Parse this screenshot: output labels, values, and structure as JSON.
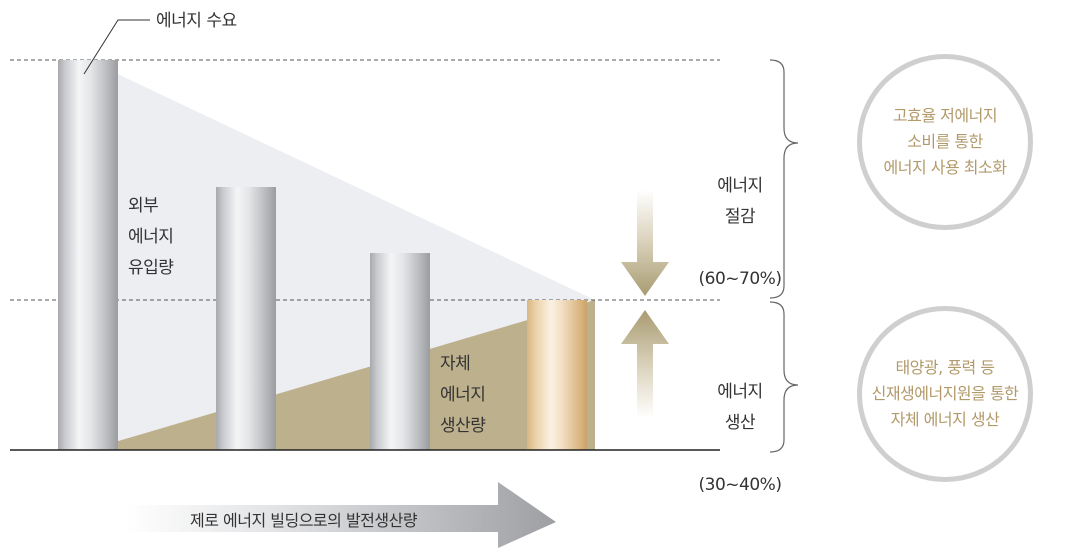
{
  "top_label": "에너지 수요",
  "external_label": "외부\n에너지\n유입량",
  "self_label": "자체\n에너지\n생산량",
  "saving": {
    "title": "에너지\n절감",
    "range": "(60~70%)"
  },
  "production": {
    "title": "에너지\n생산",
    "range": "(30~40%)"
  },
  "circle_top": "고효율 저에너지\n소비를 통한\n에너지 사용 최소화",
  "circle_bottom": "태양광, 풍력 등\n신재생에너지원을 통한\n자체 에너지 생산",
  "bottom_arrow": "제로 에너지 빌딩으로의 발전생산량",
  "colors": {
    "gold": "#b29a6a",
    "tan_fill": "#bdb08c",
    "light_fill": "#eceef2",
    "circle_border": "#cfcfcf"
  }
}
